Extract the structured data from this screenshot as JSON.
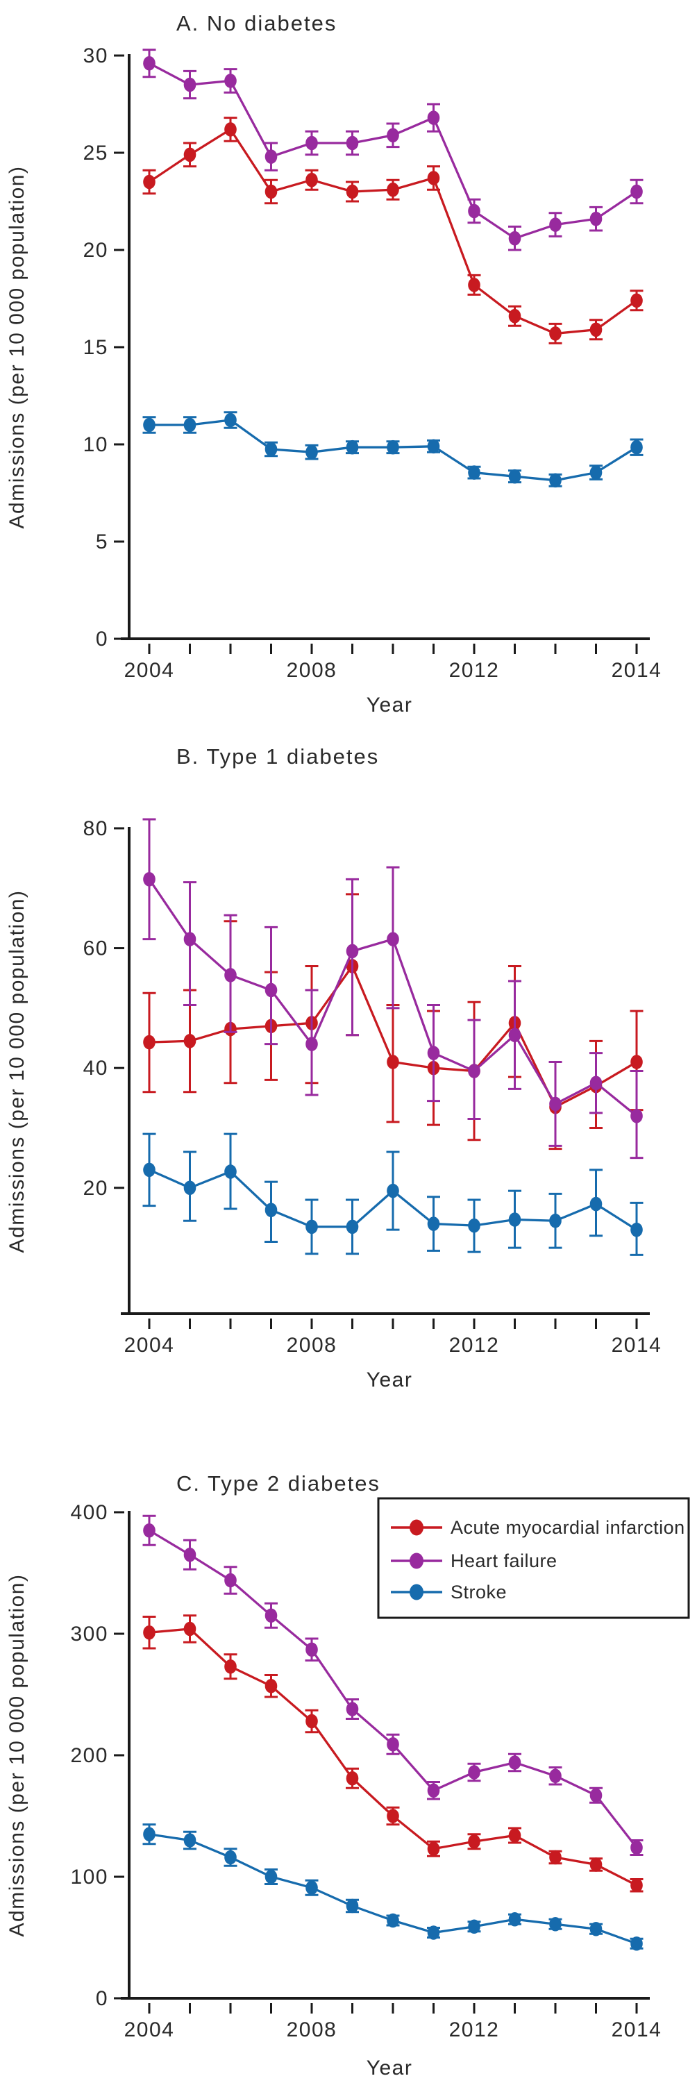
{
  "figure": {
    "xlabel": "Year",
    "ylabel": "Admissions (per 10 000 population)",
    "axis_color": "#1a1a1a",
    "background": "#ffffff",
    "legend": {
      "entries": [
        "Acute myocardial infarction",
        "Heart failure",
        "Stroke"
      ],
      "position": "top-right-panel-C",
      "border_color": "#1a1a1a"
    },
    "series_colors": {
      "Acute myocardial infarction": "#c81a20",
      "Heart failure": "#982a9e",
      "Stroke": "#166bad"
    }
  },
  "chart_data": [
    {
      "type": "line",
      "panel": "A",
      "title": "A. No diabetes",
      "xlabel": "Year",
      "ylabel": "Admissions (per 10 000 population)",
      "x_tick_labels": [
        "2004",
        "",
        "",
        "",
        "2008",
        "",
        "",
        "",
        "2012",
        "",
        "",
        "",
        "2014"
      ],
      "y_ticks": [
        0,
        5,
        10,
        15,
        20,
        25,
        30
      ],
      "ylim": [
        0,
        30
      ],
      "grid": false,
      "legend": false,
      "series": [
        {
          "name": "Acute myocardial infarction",
          "color": "#c81a20",
          "values": [
            23.5,
            24.9,
            26.2,
            23.0,
            23.6,
            23.0,
            23.1,
            23.7,
            18.2,
            16.6,
            15.7,
            15.9,
            17.4
          ],
          "ci_low": [
            22.9,
            24.3,
            25.6,
            22.4,
            23.1,
            22.5,
            22.6,
            23.1,
            17.7,
            16.1,
            15.2,
            15.4,
            16.9
          ],
          "ci_high": [
            24.1,
            25.5,
            26.8,
            23.6,
            24.1,
            23.5,
            23.6,
            24.3,
            18.7,
            17.1,
            16.2,
            16.4,
            17.9
          ]
        },
        {
          "name": "Heart failure",
          "color": "#982a9e",
          "values": [
            29.6,
            28.5,
            28.7,
            24.8,
            25.5,
            25.5,
            25.9,
            26.8,
            22.0,
            20.6,
            21.3,
            21.6,
            23.0
          ],
          "ci_low": [
            28.9,
            27.8,
            28.1,
            24.1,
            24.9,
            24.9,
            25.3,
            26.1,
            21.4,
            20.0,
            20.7,
            21.0,
            22.4
          ],
          "ci_high": [
            30.3,
            29.2,
            29.3,
            25.5,
            26.1,
            26.1,
            26.5,
            27.5,
            22.6,
            21.2,
            21.9,
            22.2,
            23.6
          ]
        },
        {
          "name": "Stroke",
          "color": "#166bad",
          "values": [
            11.0,
            11.0,
            11.25,
            9.75,
            9.6,
            9.85,
            9.85,
            9.9,
            8.55,
            8.35,
            8.15,
            8.55,
            9.85
          ],
          "ci_low": [
            10.6,
            10.6,
            10.85,
            9.4,
            9.25,
            9.55,
            9.55,
            9.6,
            8.25,
            8.05,
            7.85,
            8.2,
            9.45
          ],
          "ci_high": [
            11.4,
            11.4,
            11.65,
            10.1,
            9.95,
            10.15,
            10.15,
            10.2,
            8.85,
            8.65,
            8.45,
            8.9,
            10.25
          ]
        }
      ]
    },
    {
      "type": "line",
      "panel": "B",
      "title": "B. Type 1 diabetes",
      "xlabel": "Year",
      "ylabel": "Admissions (per 10 000 population)",
      "x_tick_labels": [
        "2004",
        "",
        "",
        "",
        "2008",
        "",
        "",
        "",
        "2012",
        "",
        "",
        "",
        "2014"
      ],
      "y_ticks": [
        20,
        40,
        60,
        80
      ],
      "ylim": [
        -1,
        84
      ],
      "grid": false,
      "legend": false,
      "series": [
        {
          "name": "Acute myocardial infarction",
          "color": "#c81a20",
          "values": [
            44.3,
            44.5,
            46.5,
            47.0,
            47.5,
            57.0,
            41.0,
            40.0,
            39.5,
            47.5,
            33.5,
            37.0,
            41.0
          ],
          "ci_low": [
            36.0,
            36.0,
            37.5,
            38.0,
            37.5,
            45.5,
            31.0,
            30.5,
            28.0,
            38.5,
            26.5,
            30.0,
            33.0
          ],
          "ci_high": [
            52.5,
            53.0,
            64.5,
            56.0,
            57.0,
            69.0,
            50.5,
            49.5,
            51.0,
            57.0,
            41.0,
            44.5,
            49.5
          ]
        },
        {
          "name": "Heart failure",
          "color": "#982a9e",
          "values": [
            71.5,
            61.5,
            55.5,
            53.0,
            44.0,
            59.5,
            61.5,
            42.5,
            39.5,
            45.5,
            34.0,
            37.5,
            32.0
          ],
          "ci_low": [
            61.5,
            50.5,
            46.0,
            44.0,
            35.5,
            45.5,
            50.0,
            34.5,
            31.5,
            36.5,
            27.0,
            32.5,
            25.0
          ],
          "ci_high": [
            81.5,
            71.0,
            65.5,
            63.5,
            53.0,
            71.5,
            73.5,
            50.5,
            48.0,
            54.5,
            41.0,
            42.5,
            39.5
          ]
        },
        {
          "name": "Stroke",
          "color": "#166bad",
          "values": [
            23.0,
            20.0,
            22.7,
            16.3,
            13.5,
            13.5,
            19.5,
            14.0,
            13.7,
            14.7,
            14.5,
            17.3,
            13.0
          ],
          "ci_low": [
            17.0,
            14.5,
            16.5,
            11.0,
            9.0,
            9.0,
            13.0,
            9.5,
            9.3,
            10.0,
            10.0,
            12.0,
            8.8
          ],
          "ci_high": [
            29.0,
            26.0,
            29.0,
            21.0,
            18.0,
            18.0,
            26.0,
            18.5,
            18.0,
            19.5,
            19.0,
            23.0,
            17.5
          ]
        }
      ]
    },
    {
      "type": "line",
      "panel": "C",
      "title": "C. Type 2 diabetes",
      "xlabel": "Year",
      "ylabel": "Admissions (per 10 000 population)",
      "x_tick_labels": [
        "2004",
        "",
        "",
        "",
        "2008",
        "",
        "",
        "",
        "2012",
        "",
        "",
        "",
        "2014"
      ],
      "y_ticks": [
        0,
        100,
        200,
        300,
        400
      ],
      "ylim": [
        0,
        400
      ],
      "grid": false,
      "legend": {
        "show": true,
        "position": "top-right"
      },
      "series": [
        {
          "name": "Acute myocardial infarction",
          "color": "#c81a20",
          "values": [
            301,
            304,
            273,
            257,
            228,
            181,
            150,
            123,
            129,
            134,
            116,
            110,
            93
          ],
          "ci_low": [
            288,
            293,
            263,
            248,
            219,
            173,
            143,
            117,
            123,
            128,
            111,
            105,
            88
          ],
          "ci_high": [
            314,
            315,
            283,
            266,
            237,
            189,
            157,
            129,
            135,
            140,
            121,
            115,
            98
          ]
        },
        {
          "name": "Heart failure",
          "color": "#982a9e",
          "values": [
            385,
            365,
            344,
            315,
            287,
            238,
            209,
            171,
            186,
            194,
            183,
            167,
            124
          ],
          "ci_low": [
            373,
            353,
            333,
            305,
            278,
            230,
            201,
            164,
            179,
            187,
            176,
            161,
            118
          ],
          "ci_high": [
            397,
            377,
            355,
            325,
            296,
            246,
            217,
            178,
            193,
            201,
            190,
            173,
            130
          ]
        },
        {
          "name": "Stroke",
          "color": "#166bad",
          "values": [
            135,
            130,
            116,
            100,
            91,
            76,
            64,
            54,
            59,
            65,
            61,
            57,
            45
          ],
          "ci_low": [
            127,
            123,
            109,
            94,
            85,
            71,
            60,
            50,
            55,
            61,
            57,
            53,
            41
          ],
          "ci_high": [
            143,
            137,
            123,
            106,
            97,
            81,
            68,
            58,
            63,
            69,
            65,
            61,
            49
          ]
        }
      ]
    }
  ]
}
